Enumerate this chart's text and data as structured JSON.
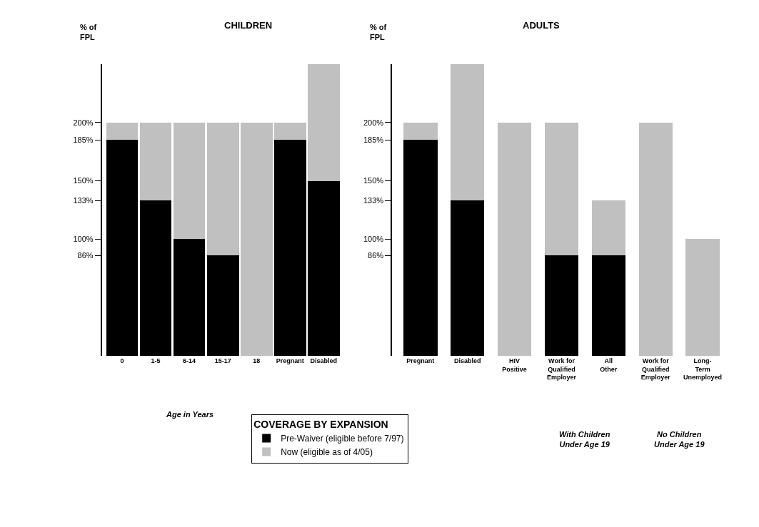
{
  "chart_data": [
    {
      "type": "bar",
      "title": "CHILDREN",
      "ylabel": "% of\nFPL",
      "stacked": true,
      "legend": "bottom",
      "legend_title": "COVERAGE BY EXPANSION",
      "categories": [
        "0",
        "1-5",
        "6-14",
        "15-17",
        "18",
        "Pregnant",
        "Disabled"
      ],
      "series": [
        {
          "name": "Pre-Waiver (eligible before 7/97)",
          "color": "#000000",
          "values": [
            185,
            133,
            100,
            86,
            0,
            185,
            150
          ]
        },
        {
          "name": "Now (eligible as of 4/05)",
          "color": "#c0c0c0",
          "values": [
            15,
            67,
            100,
            114,
            200,
            15,
            100
          ]
        }
      ],
      "ylim": [
        0,
        250
      ],
      "yticks": [
        {
          "value": 86,
          "label": "86%"
        },
        {
          "value": 100,
          "label": "100%"
        },
        {
          "value": 133,
          "label": "133%"
        },
        {
          "value": 150,
          "label": "150%"
        },
        {
          "value": 185,
          "label": "185%"
        },
        {
          "value": 200,
          "label": "200%"
        }
      ],
      "annotations": [
        "Age in Years"
      ]
    },
    {
      "type": "bar",
      "title": "ADULTS",
      "ylabel": "% of\nFPL",
      "stacked": true,
      "categories": [
        "Pregnant",
        "Disabled",
        "HIV\nPositive",
        "Work for\nQualified\nEmployer",
        "All\nOther",
        "Work for\nQualified\nEmployer",
        "Long-\nTerm\nUnemployed"
      ],
      "series": [
        {
          "color": "#000000",
          "values": [
            185,
            133,
            0,
            86,
            86,
            0,
            0
          ]
        },
        {
          "color": "#c0c0c0",
          "values": [
            15,
            117,
            200,
            114,
            47,
            200,
            100
          ]
        }
      ],
      "ylim": [
        0,
        250
      ],
      "yticks": [
        {
          "value": 86,
          "label": "86%"
        },
        {
          "value": 100,
          "label": "100%"
        },
        {
          "value": 133,
          "label": "133%"
        },
        {
          "value": 150,
          "label": "150%"
        },
        {
          "value": 185,
          "label": "185%"
        },
        {
          "value": 200,
          "label": "200%"
        }
      ],
      "annotations": [
        "With Children\nUnder Age 19",
        "No Children\nUnder Age 19"
      ]
    }
  ]
}
